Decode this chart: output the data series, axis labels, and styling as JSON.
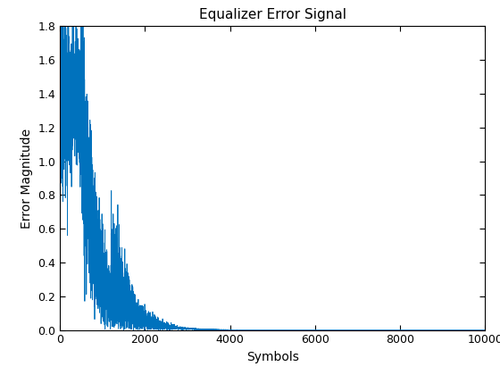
{
  "title": "Equalizer Error Signal",
  "xlabel": "Symbols",
  "ylabel": "Error Magnitude",
  "line_color": "#0072BD",
  "xlim": [
    0,
    10000
  ],
  "ylim": [
    0,
    1.8
  ],
  "xticks": [
    0,
    2000,
    4000,
    6000,
    8000,
    10000
  ],
  "yticks": [
    0,
    0.2,
    0.4,
    0.6,
    0.8,
    1.0,
    1.2,
    1.4,
    1.6,
    1.8
  ],
  "n_samples": 10000,
  "figsize": [
    5.6,
    4.2
  ],
  "dpi": 100,
  "title_fontsize": 11,
  "label_fontsize": 10,
  "tick_fontsize": 9,
  "linewidth": 0.6,
  "background_color": "#ffffff"
}
